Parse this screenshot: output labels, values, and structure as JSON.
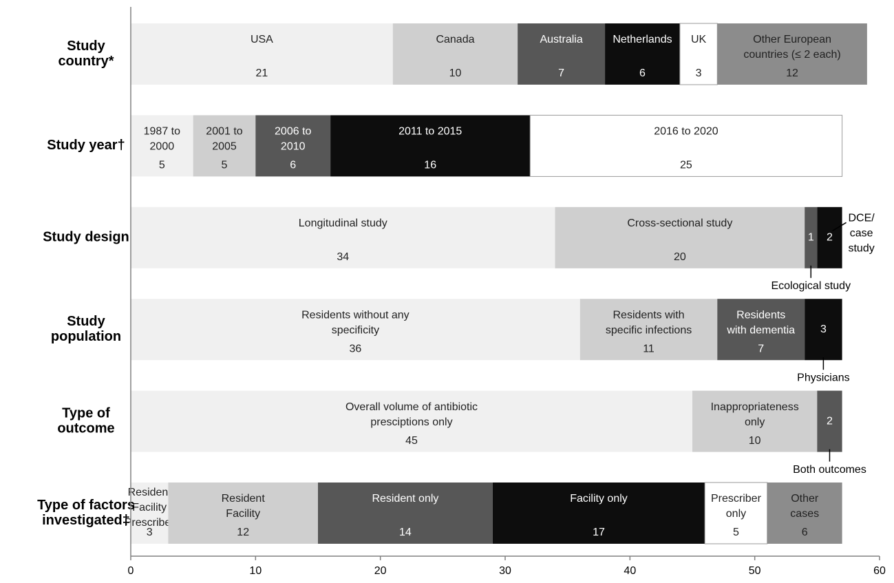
{
  "chart_data": {
    "type": "bar",
    "orientation": "horizontal",
    "stacked": true,
    "xlim": [
      0,
      60
    ],
    "xticks": [
      0,
      10,
      20,
      30,
      40,
      50,
      60
    ],
    "grid": false,
    "rows": [
      {
        "category": [
          "Study",
          "country*"
        ],
        "segments": [
          {
            "label": [
              "USA"
            ],
            "value": 21,
            "color": "#f0f0f0"
          },
          {
            "label": [
              "Canada"
            ],
            "value": 10,
            "color": "#cfcfcf"
          },
          {
            "label": [
              "Australia"
            ],
            "value": 7,
            "color": "#575757"
          },
          {
            "label": [
              "Netherlands"
            ],
            "value": 6,
            "color": "#0d0d0d"
          },
          {
            "label": [
              "UK"
            ],
            "value": 3,
            "color": "#ffffff"
          },
          {
            "label": [
              "Other European",
              "countries (≤ 2 each)"
            ],
            "value": 12,
            "color": "#8c8c8c"
          }
        ]
      },
      {
        "category": [
          "Study year†"
        ],
        "segments": [
          {
            "label": [
              "1987 to",
              "2000"
            ],
            "value": 5,
            "color": "#f0f0f0"
          },
          {
            "label": [
              "2001 to",
              "2005"
            ],
            "value": 5,
            "color": "#cfcfcf"
          },
          {
            "label": [
              "2006 to",
              "2010"
            ],
            "value": 6,
            "color": "#575757"
          },
          {
            "label": [
              "2011 to 2015"
            ],
            "value": 16,
            "color": "#0d0d0d"
          },
          {
            "label": [
              "2016 to 2020"
            ],
            "value": 25,
            "color": "#ffffff"
          }
        ]
      },
      {
        "category": [
          "Study design"
        ],
        "segments": [
          {
            "label": [
              "Longitudinal study"
            ],
            "value": 34,
            "color": "#f0f0f0"
          },
          {
            "label": [
              "Cross-sectional study"
            ],
            "value": 20,
            "color": "#cfcfcf"
          },
          {
            "label": [],
            "value": 1,
            "color": "#575757"
          },
          {
            "label": [],
            "value": 2,
            "color": "#0d0d0d"
          }
        ],
        "annotations": [
          {
            "text": [
              "Ecological study"
            ],
            "segment": 2,
            "position": "below"
          },
          {
            "text": [
              "DCE/",
              "case",
              "study"
            ],
            "segment": 3,
            "position": "right"
          }
        ]
      },
      {
        "category": [
          "Study",
          "population"
        ],
        "segments": [
          {
            "label": [
              "Residents without any",
              "specificity"
            ],
            "value": 36,
            "color": "#f0f0f0"
          },
          {
            "label": [
              "Residents with",
              "specific infections"
            ],
            "value": 11,
            "color": "#cfcfcf"
          },
          {
            "label": [
              "Residents",
              "with dementia"
            ],
            "value": 7,
            "color": "#575757"
          },
          {
            "label": [],
            "value": 3,
            "color": "#0d0d0d"
          }
        ],
        "annotations": [
          {
            "text": [
              "Physicians"
            ],
            "segment": 3,
            "position": "below"
          }
        ]
      },
      {
        "category": [
          "Type of",
          "outcome"
        ],
        "segments": [
          {
            "label": [
              "Overall volume of antibiotic",
              "presciptions only"
            ],
            "value": 45,
            "color": "#f0f0f0"
          },
          {
            "label": [
              "Inappropriateness",
              "only"
            ],
            "value": 10,
            "color": "#cfcfcf"
          },
          {
            "label": [],
            "value": 2,
            "color": "#575757"
          }
        ],
        "annotations": [
          {
            "text": [
              "Both outcomes"
            ],
            "segment": 2,
            "position": "below"
          }
        ]
      },
      {
        "category": [
          "Type of factors",
          "investigated‡"
        ],
        "segments": [
          {
            "label": [
              "Resident",
              "Facility",
              "Prescriber"
            ],
            "value": 3,
            "color": "#f0f0f0"
          },
          {
            "label": [
              "Resident",
              "Facility"
            ],
            "value": 12,
            "color": "#cfcfcf"
          },
          {
            "label": [
              "Resident only"
            ],
            "value": 14,
            "color": "#575757"
          },
          {
            "label": [
              "Facility only"
            ],
            "value": 17,
            "color": "#0d0d0d"
          },
          {
            "label": [
              "Prescriber",
              "only"
            ],
            "value": 5,
            "color": "#ffffff"
          },
          {
            "label": [
              "Other",
              "cases"
            ],
            "value": 6,
            "color": "#8c8c8c"
          }
        ]
      }
    ]
  }
}
